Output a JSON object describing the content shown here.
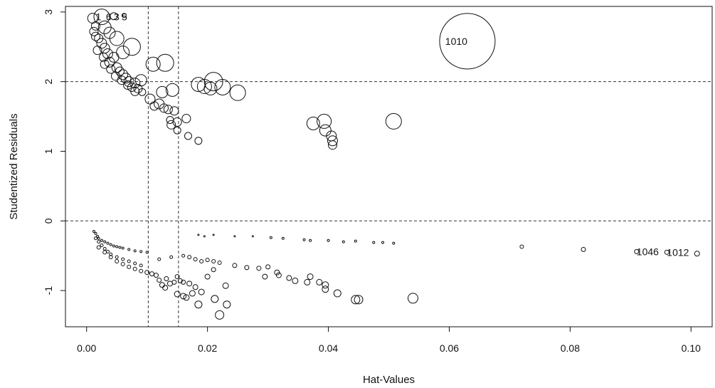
{
  "chart_data": {
    "type": "scatter",
    "title": "",
    "xlabel": "Hat-Values",
    "ylabel": "Studentized Residuals",
    "xlim": [
      -0.0035,
      0.1035
    ],
    "ylim": [
      -1.52,
      3.08
    ],
    "x_ticks": [
      0.0,
      0.02,
      0.04,
      0.06,
      0.08,
      0.1
    ],
    "x_tick_labels": [
      "0.00",
      "0.02",
      "0.04",
      "0.06",
      "0.08",
      "0.10"
    ],
    "y_ticks": [
      -1,
      0,
      1,
      2,
      3
    ],
    "y_tick_labels": [
      "-1",
      "0",
      "1",
      "2",
      "3"
    ],
    "grid": false,
    "reference_lines": {
      "vertical_x": [
        0.0102,
        0.0152
      ],
      "horizontal_y": [
        0,
        2
      ]
    },
    "bubble_size": "Cook's distance",
    "points": [
      {
        "x": 0.0062,
        "y": 2.95,
        "r": 3
      },
      {
        "x": 0.0045,
        "y": 2.94,
        "r": 5
      },
      {
        "x": 0.0025,
        "y": 2.93,
        "r": 11
      },
      {
        "x": 0.001,
        "y": 2.91,
        "r": 7
      },
      {
        "x": 0.0015,
        "y": 2.8,
        "r": 6
      },
      {
        "x": 0.003,
        "y": 2.78,
        "r": 9
      },
      {
        "x": 0.0012,
        "y": 2.72,
        "r": 6
      },
      {
        "x": 0.0038,
        "y": 2.7,
        "r": 8
      },
      {
        "x": 0.0015,
        "y": 2.65,
        "r": 6
      },
      {
        "x": 0.002,
        "y": 2.62,
        "r": 6
      },
      {
        "x": 0.005,
        "y": 2.62,
        "r": 10
      },
      {
        "x": 0.0025,
        "y": 2.55,
        "r": 7
      },
      {
        "x": 0.0075,
        "y": 2.5,
        "r": 12
      },
      {
        "x": 0.003,
        "y": 2.48,
        "r": 7
      },
      {
        "x": 0.0018,
        "y": 2.45,
        "r": 6
      },
      {
        "x": 0.006,
        "y": 2.42,
        "r": 9
      },
      {
        "x": 0.0035,
        "y": 2.4,
        "r": 7
      },
      {
        "x": 0.0028,
        "y": 2.35,
        "r": 6
      },
      {
        "x": 0.0045,
        "y": 2.35,
        "r": 7
      },
      {
        "x": 0.0038,
        "y": 2.28,
        "r": 7
      },
      {
        "x": 0.003,
        "y": 2.25,
        "r": 6
      },
      {
        "x": 0.005,
        "y": 2.2,
        "r": 7
      },
      {
        "x": 0.004,
        "y": 2.18,
        "r": 6
      },
      {
        "x": 0.0055,
        "y": 2.15,
        "r": 6
      },
      {
        "x": 0.006,
        "y": 2.1,
        "r": 7
      },
      {
        "x": 0.0048,
        "y": 2.08,
        "r": 6
      },
      {
        "x": 0.0065,
        "y": 2.05,
        "r": 7
      },
      {
        "x": 0.0058,
        "y": 2.02,
        "r": 6
      },
      {
        "x": 0.007,
        "y": 2.0,
        "r": 7
      },
      {
        "x": 0.009,
        "y": 2.02,
        "r": 8
      },
      {
        "x": 0.008,
        "y": 1.98,
        "r": 7
      },
      {
        "x": 0.0068,
        "y": 1.95,
        "r": 6
      },
      {
        "x": 0.0075,
        "y": 1.92,
        "r": 6
      },
      {
        "x": 0.0085,
        "y": 1.9,
        "r": 6
      },
      {
        "x": 0.008,
        "y": 1.86,
        "r": 6
      },
      {
        "x": 0.0092,
        "y": 1.85,
        "r": 5
      },
      {
        "x": 0.011,
        "y": 2.25,
        "r": 10
      },
      {
        "x": 0.013,
        "y": 2.27,
        "r": 12
      },
      {
        "x": 0.0105,
        "y": 1.75,
        "r": 7
      },
      {
        "x": 0.0125,
        "y": 1.85,
        "r": 8
      },
      {
        "x": 0.0142,
        "y": 1.88,
        "r": 9
      },
      {
        "x": 0.0112,
        "y": 1.65,
        "r": 6
      },
      {
        "x": 0.012,
        "y": 1.68,
        "r": 7
      },
      {
        "x": 0.0128,
        "y": 1.62,
        "r": 6
      },
      {
        "x": 0.0135,
        "y": 1.6,
        "r": 6
      },
      {
        "x": 0.0145,
        "y": 1.58,
        "r": 6
      },
      {
        "x": 0.0138,
        "y": 1.45,
        "r": 5
      },
      {
        "x": 0.014,
        "y": 1.38,
        "r": 6
      },
      {
        "x": 0.015,
        "y": 1.42,
        "r": 6
      },
      {
        "x": 0.015,
        "y": 1.3,
        "r": 5
      },
      {
        "x": 0.0165,
        "y": 1.47,
        "r": 6
      },
      {
        "x": 0.0168,
        "y": 1.22,
        "r": 5
      },
      {
        "x": 0.0185,
        "y": 1.15,
        "r": 5
      },
      {
        "x": 0.0185,
        "y": 1.96,
        "r": 10
      },
      {
        "x": 0.0195,
        "y": 1.93,
        "r": 10
      },
      {
        "x": 0.021,
        "y": 2.0,
        "r": 13
      },
      {
        "x": 0.0225,
        "y": 1.92,
        "r": 11
      },
      {
        "x": 0.0205,
        "y": 1.9,
        "r": 9
      },
      {
        "x": 0.025,
        "y": 1.84,
        "r": 11
      },
      {
        "x": 0.0375,
        "y": 1.4,
        "r": 9
      },
      {
        "x": 0.0393,
        "y": 1.43,
        "r": 10
      },
      {
        "x": 0.0395,
        "y": 1.3,
        "r": 8
      },
      {
        "x": 0.0405,
        "y": 1.22,
        "r": 7
      },
      {
        "x": 0.0407,
        "y": 1.15,
        "r": 7
      },
      {
        "x": 0.0407,
        "y": 1.09,
        "r": 6
      },
      {
        "x": 0.0508,
        "y": 1.43,
        "r": 11
      },
      {
        "x": 0.063,
        "y": 2.58,
        "r": 39
      },
      {
        "x": 0.0012,
        "y": -0.15,
        "r": 1.5
      },
      {
        "x": 0.0015,
        "y": -0.18,
        "r": 1.5
      },
      {
        "x": 0.0018,
        "y": -0.22,
        "r": 1.5
      },
      {
        "x": 0.002,
        "y": -0.25,
        "r": 1.5
      },
      {
        "x": 0.0025,
        "y": -0.28,
        "r": 1.5
      },
      {
        "x": 0.003,
        "y": -0.3,
        "r": 1.5
      },
      {
        "x": 0.0035,
        "y": -0.32,
        "r": 1.5
      },
      {
        "x": 0.004,
        "y": -0.34,
        "r": 1.5
      },
      {
        "x": 0.0045,
        "y": -0.36,
        "r": 1.5
      },
      {
        "x": 0.005,
        "y": -0.37,
        "r": 1.5
      },
      {
        "x": 0.0055,
        "y": -0.38,
        "r": 1.5
      },
      {
        "x": 0.006,
        "y": -0.39,
        "r": 1.5
      },
      {
        "x": 0.007,
        "y": -0.41,
        "r": 1.5
      },
      {
        "x": 0.008,
        "y": -0.43,
        "r": 1.5
      },
      {
        "x": 0.009,
        "y": -0.44,
        "r": 1.5
      },
      {
        "x": 0.01,
        "y": -0.45,
        "r": 1.5
      },
      {
        "x": 0.0015,
        "y": -0.25,
        "r": 2
      },
      {
        "x": 0.002,
        "y": -0.3,
        "r": 2
      },
      {
        "x": 0.0025,
        "y": -0.35,
        "r": 2
      },
      {
        "x": 0.003,
        "y": -0.4,
        "r": 2
      },
      {
        "x": 0.0035,
        "y": -0.44,
        "r": 2
      },
      {
        "x": 0.004,
        "y": -0.48,
        "r": 2
      },
      {
        "x": 0.005,
        "y": -0.52,
        "r": 2
      },
      {
        "x": 0.006,
        "y": -0.55,
        "r": 2
      },
      {
        "x": 0.007,
        "y": -0.58,
        "r": 2
      },
      {
        "x": 0.008,
        "y": -0.61,
        "r": 2
      },
      {
        "x": 0.009,
        "y": -0.64,
        "r": 2
      },
      {
        "x": 0.002,
        "y": -0.38,
        "r": 2.5
      },
      {
        "x": 0.003,
        "y": -0.45,
        "r": 2.5
      },
      {
        "x": 0.004,
        "y": -0.52,
        "r": 2.5
      },
      {
        "x": 0.005,
        "y": -0.58,
        "r": 2.5
      },
      {
        "x": 0.006,
        "y": -0.62,
        "r": 2.5
      },
      {
        "x": 0.007,
        "y": -0.66,
        "r": 2.5
      },
      {
        "x": 0.008,
        "y": -0.69,
        "r": 2.5
      },
      {
        "x": 0.009,
        "y": -0.72,
        "r": 2.5
      },
      {
        "x": 0.01,
        "y": -0.74,
        "r": 3
      },
      {
        "x": 0.0108,
        "y": -0.76,
        "r": 3
      },
      {
        "x": 0.0115,
        "y": -0.78,
        "r": 3
      },
      {
        "x": 0.012,
        "y": -0.85,
        "r": 3
      },
      {
        "x": 0.0125,
        "y": -0.92,
        "r": 3.5
      },
      {
        "x": 0.013,
        "y": -0.96,
        "r": 3.5
      },
      {
        "x": 0.0132,
        "y": -0.83,
        "r": 3
      },
      {
        "x": 0.0138,
        "y": -0.9,
        "r": 3.5
      },
      {
        "x": 0.0145,
        "y": -0.88,
        "r": 3
      },
      {
        "x": 0.015,
        "y": -0.8,
        "r": 3
      },
      {
        "x": 0.0155,
        "y": -0.86,
        "r": 3
      },
      {
        "x": 0.016,
        "y": -0.88,
        "r": 3
      },
      {
        "x": 0.015,
        "y": -1.05,
        "r": 4
      },
      {
        "x": 0.016,
        "y": -1.08,
        "r": 4
      },
      {
        "x": 0.0165,
        "y": -1.1,
        "r": 4
      },
      {
        "x": 0.017,
        "y": -0.9,
        "r": 3.5
      },
      {
        "x": 0.0175,
        "y": -1.04,
        "r": 4
      },
      {
        "x": 0.018,
        "y": -0.95,
        "r": 3.5
      },
      {
        "x": 0.0185,
        "y": -1.2,
        "r": 5
      },
      {
        "x": 0.019,
        "y": -1.02,
        "r": 4
      },
      {
        "x": 0.02,
        "y": -0.8,
        "r": 3.5
      },
      {
        "x": 0.021,
        "y": -0.7,
        "r": 3
      },
      {
        "x": 0.0212,
        "y": -1.12,
        "r": 5
      },
      {
        "x": 0.022,
        "y": -1.35,
        "r": 6
      },
      {
        "x": 0.0232,
        "y": -1.2,
        "r": 5
      },
      {
        "x": 0.023,
        "y": -0.93,
        "r": 4
      },
      {
        "x": 0.012,
        "y": -0.55,
        "r": 2
      },
      {
        "x": 0.014,
        "y": -0.52,
        "r": 2
      },
      {
        "x": 0.016,
        "y": -0.5,
        "r": 2
      },
      {
        "x": 0.017,
        "y": -0.52,
        "r": 2.5
      },
      {
        "x": 0.018,
        "y": -0.55,
        "r": 2.5
      },
      {
        "x": 0.019,
        "y": -0.58,
        "r": 2.5
      },
      {
        "x": 0.02,
        "y": -0.56,
        "r": 2.5
      },
      {
        "x": 0.021,
        "y": -0.58,
        "r": 2.5
      },
      {
        "x": 0.022,
        "y": -0.6,
        "r": 2.5
      },
      {
        "x": 0.0245,
        "y": -0.64,
        "r": 3
      },
      {
        "x": 0.0265,
        "y": -0.67,
        "r": 3
      },
      {
        "x": 0.0285,
        "y": -0.68,
        "r": 3
      },
      {
        "x": 0.0295,
        "y": -0.8,
        "r": 3.5
      },
      {
        "x": 0.03,
        "y": -0.66,
        "r": 3
      },
      {
        "x": 0.0315,
        "y": -0.74,
        "r": 3.5
      },
      {
        "x": 0.0318,
        "y": -0.78,
        "r": 3.5
      },
      {
        "x": 0.0335,
        "y": -0.82,
        "r": 3.5
      },
      {
        "x": 0.0345,
        "y": -0.86,
        "r": 4
      },
      {
        "x": 0.0365,
        "y": -0.88,
        "r": 4
      },
      {
        "x": 0.037,
        "y": -0.8,
        "r": 4
      },
      {
        "x": 0.0385,
        "y": -0.88,
        "r": 4
      },
      {
        "x": 0.0395,
        "y": -0.92,
        "r": 4.5
      },
      {
        "x": 0.0395,
        "y": -0.98,
        "r": 4.5
      },
      {
        "x": 0.0415,
        "y": -1.04,
        "r": 5
      },
      {
        "x": 0.0445,
        "y": -1.13,
        "r": 6
      },
      {
        "x": 0.045,
        "y": -1.13,
        "r": 6
      },
      {
        "x": 0.054,
        "y": -1.11,
        "r": 7
      },
      {
        "x": 0.0185,
        "y": -0.2,
        "r": 1
      },
      {
        "x": 0.0195,
        "y": -0.22,
        "r": 1
      },
      {
        "x": 0.021,
        "y": -0.2,
        "r": 1
      },
      {
        "x": 0.0245,
        "y": -0.22,
        "r": 1
      },
      {
        "x": 0.0275,
        "y": -0.22,
        "r": 1
      },
      {
        "x": 0.0305,
        "y": -0.24,
        "r": 1.5
      },
      {
        "x": 0.0325,
        "y": -0.25,
        "r": 1.5
      },
      {
        "x": 0.036,
        "y": -0.27,
        "r": 1.5
      },
      {
        "x": 0.037,
        "y": -0.28,
        "r": 1.5
      },
      {
        "x": 0.04,
        "y": -0.28,
        "r": 1.5
      },
      {
        "x": 0.0425,
        "y": -0.3,
        "r": 1.5
      },
      {
        "x": 0.0445,
        "y": -0.29,
        "r": 1.5
      },
      {
        "x": 0.0475,
        "y": -0.31,
        "r": 1.5
      },
      {
        "x": 0.049,
        "y": -0.31,
        "r": 1.5
      },
      {
        "x": 0.0508,
        "y": -0.32,
        "r": 1.5
      },
      {
        "x": 0.072,
        "y": -0.37,
        "r": 2.5
      },
      {
        "x": 0.0822,
        "y": -0.41,
        "r": 3
      },
      {
        "x": 0.091,
        "y": -0.44,
        "r": 3
      },
      {
        "x": 0.096,
        "y": -0.45,
        "r": 3
      },
      {
        "x": 0.101,
        "y": -0.47,
        "r": 3.5
      }
    ],
    "point_labels": [
      {
        "text": "1010",
        "x": 0.063,
        "y": 2.58,
        "anchor": "end"
      },
      {
        "text": "1046",
        "x": 0.091,
        "y": -0.44,
        "anchor": "start"
      },
      {
        "text": "1012",
        "x": 0.096,
        "y": -0.45,
        "anchor": "start"
      },
      {
        "text": "1",
        "x": 0.0015,
        "y": 2.93,
        "anchor": "start"
      },
      {
        "text": "6",
        "x": 0.0032,
        "y": 2.93,
        "anchor": "start"
      },
      {
        "text": "3",
        "x": 0.0045,
        "y": 2.93,
        "anchor": "start"
      },
      {
        "text": "5",
        "x": 0.0058,
        "y": 2.93,
        "anchor": "start"
      }
    ]
  }
}
